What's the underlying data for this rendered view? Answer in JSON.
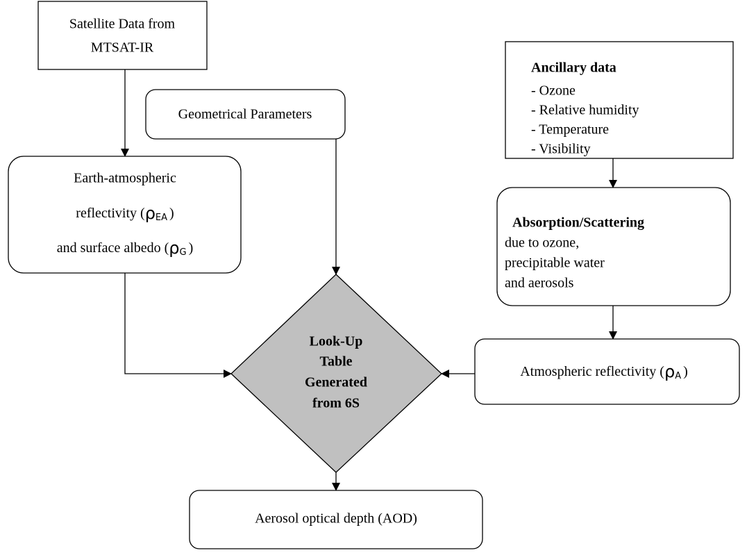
{
  "nodes": {
    "satellite": {
      "lines": [
        "Satellite Data from",
        "MTSAT-IR"
      ]
    },
    "geometry": {
      "label": "Geometrical Parameters"
    },
    "ancillary": {
      "title": "Ancillary data",
      "items": [
        "- Ozone",
        "- Relative humidity",
        "- Temperature",
        "- Visibility"
      ]
    },
    "earth": {
      "line1": "Earth-atmospheric",
      "line2": {
        "prefix": "reflectivity (",
        "symbol": "ρ",
        "subscript": "EA",
        "suffix": ")"
      },
      "line3": {
        "prefix": "and surface albedo (",
        "symbol": "ρ",
        "subscript": "G",
        "suffix": ")"
      }
    },
    "absorption": {
      "title": "Absorption/Scattering",
      "lines": [
        "due to ozone,",
        "precipitable water",
        "and aerosols"
      ]
    },
    "lut": {
      "lines": [
        "Look-Up",
        "Table",
        "Generated",
        "from 6S"
      ]
    },
    "atmos": {
      "prefix": "Atmospheric reflectivity (",
      "symbol": "ρ",
      "subscript": "A",
      "suffix": ")"
    },
    "aod": {
      "label": "Aerosol optical depth (AOD)"
    }
  }
}
